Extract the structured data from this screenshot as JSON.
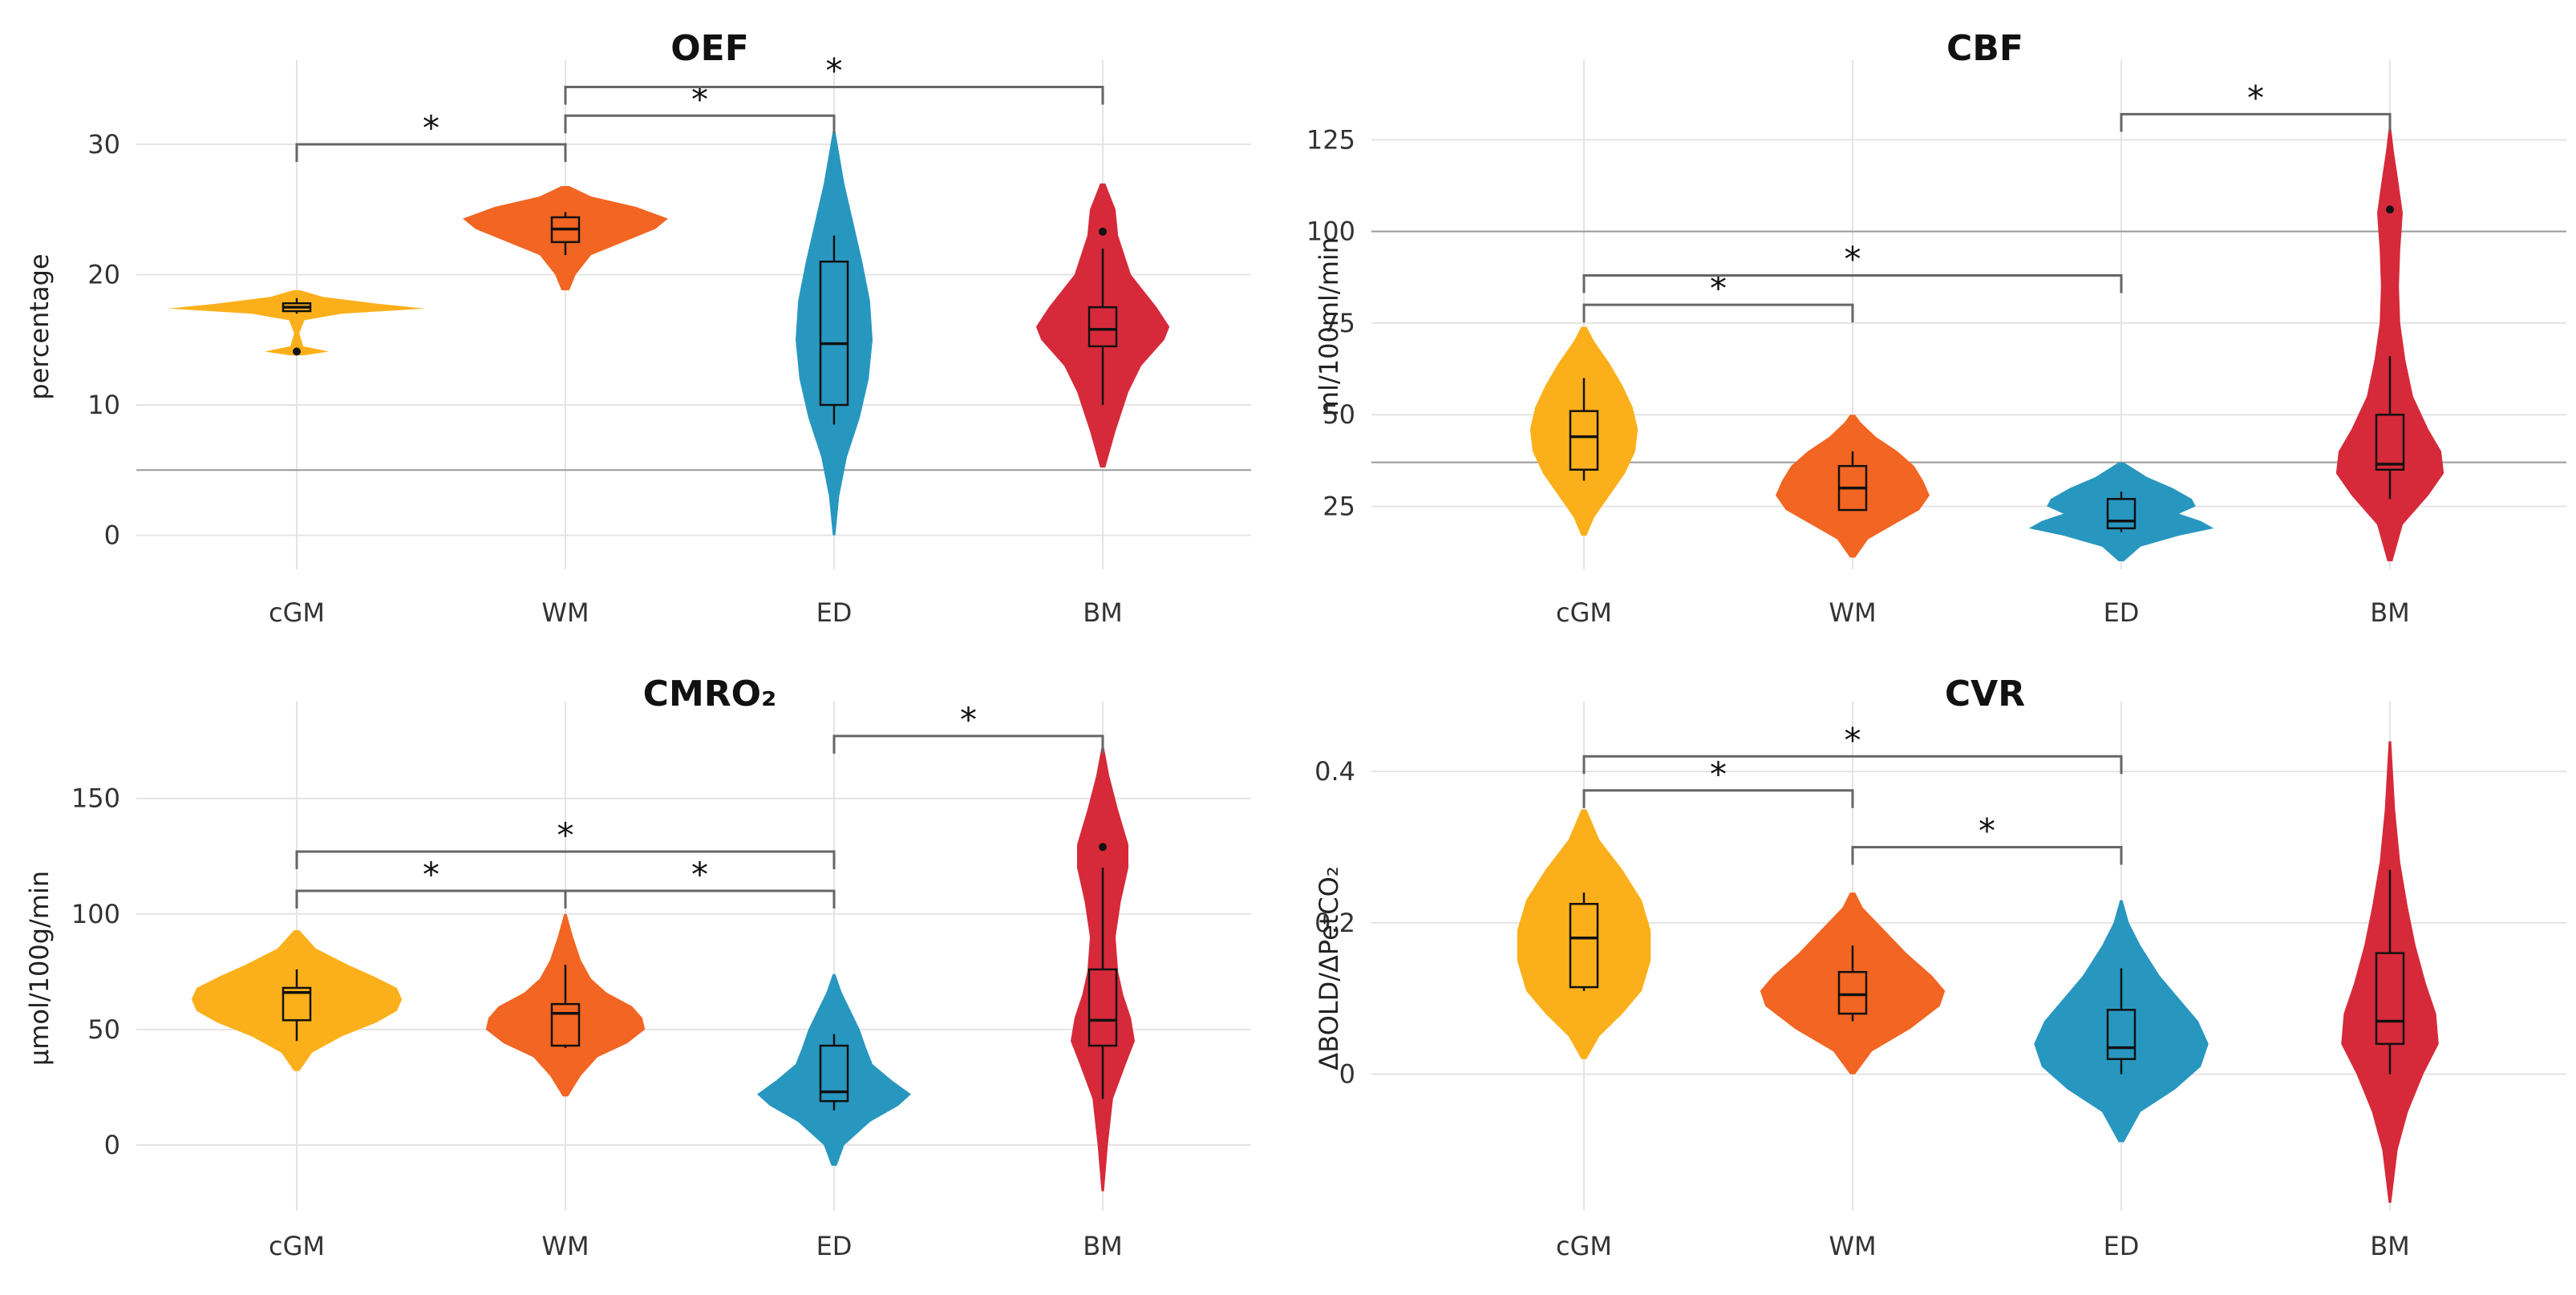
{
  "colors": {
    "cGM": "#fbb01b",
    "WM": "#f26522",
    "ED": "#2897c0",
    "BM": "#d62a3a"
  },
  "chart_data": [
    {
      "type": "violin",
      "title": "OEF",
      "ylabel": "percentage",
      "categories": [
        "cGM",
        "WM",
        "ED",
        "BM"
      ],
      "yticks": [
        0,
        10,
        20,
        30
      ],
      "ylim": [
        -2,
        34
      ],
      "reflines": [
        5
      ],
      "violins": [
        {
          "min": 13.8,
          "max": 18.8,
          "profile": [
            [
              13.8,
              0.05
            ],
            [
              14.1,
              0.25
            ],
            [
              14.5,
              0.05
            ],
            [
              15.5,
              0.02
            ],
            [
              16.5,
              0.06
            ],
            [
              17.0,
              0.35
            ],
            [
              17.4,
              1.0
            ],
            [
              17.8,
              0.6
            ],
            [
              18.3,
              0.2
            ],
            [
              18.8,
              0.03
            ]
          ]
        },
        {
          "min": 18.8,
          "max": 26.8,
          "profile": [
            [
              18.8,
              0.03
            ],
            [
              20,
              0.08
            ],
            [
              21.5,
              0.2
            ],
            [
              22.5,
              0.45
            ],
            [
              23.5,
              0.7
            ],
            [
              24.3,
              0.8
            ],
            [
              25.2,
              0.55
            ],
            [
              26,
              0.2
            ],
            [
              26.8,
              0.03
            ]
          ]
        },
        {
          "min": 0,
          "max": 31,
          "profile": [
            [
              0,
              0.01
            ],
            [
              3,
              0.04
            ],
            [
              6,
              0.1
            ],
            [
              9,
              0.2
            ],
            [
              12,
              0.27
            ],
            [
              15,
              0.3
            ],
            [
              18,
              0.28
            ],
            [
              21,
              0.22
            ],
            [
              24,
              0.15
            ],
            [
              27,
              0.08
            ],
            [
              31,
              0.01
            ]
          ]
        },
        {
          "min": 5.2,
          "max": 27,
          "profile": [
            [
              5.2,
              0.02
            ],
            [
              8,
              0.1
            ],
            [
              11,
              0.2
            ],
            [
              13,
              0.3
            ],
            [
              15,
              0.48
            ],
            [
              16,
              0.52
            ],
            [
              17.5,
              0.42
            ],
            [
              20,
              0.22
            ],
            [
              23,
              0.12
            ],
            [
              25,
              0.1
            ],
            [
              27,
              0.02
            ]
          ]
        }
      ],
      "boxes": [
        {
          "lo": 17.0,
          "q1": 17.2,
          "med": 17.5,
          "q3": 17.8,
          "hi": 18.2,
          "outliers": [
            14.1
          ]
        },
        {
          "lo": 21.5,
          "q1": 22.5,
          "med": 23.5,
          "q3": 24.4,
          "hi": 24.8,
          "outliers": []
        },
        {
          "lo": 8.5,
          "q1": 10,
          "med": 14.7,
          "q3": 21,
          "hi": 23,
          "outliers": []
        },
        {
          "lo": 10,
          "q1": 14.5,
          "med": 15.8,
          "q3": 17.5,
          "hi": 22,
          "outliers": [
            23.3
          ]
        }
      ],
      "brackets": [
        {
          "from": 0,
          "to": 1,
          "y": 30,
          "label": "*"
        },
        {
          "from": 1,
          "to": 2,
          "y": 32.2,
          "label": "*"
        },
        {
          "from": 1,
          "to": 3,
          "y": 34.4,
          "label": "*"
        }
      ]
    },
    {
      "type": "violin",
      "title": "CBF",
      "ylabel": "ml/100ml/min",
      "categories": [
        "cGM",
        "WM",
        "ED",
        "BM"
      ],
      "yticks": [
        25,
        50,
        75,
        100,
        125
      ],
      "ylim": [
        10,
        138
      ],
      "reflines": [
        37,
        100
      ],
      "violins": [
        {
          "min": 17,
          "max": 74,
          "profile": [
            [
              17,
              0.02
            ],
            [
              22,
              0.08
            ],
            [
              28,
              0.2
            ],
            [
              34,
              0.32
            ],
            [
              40,
              0.4
            ],
            [
              46,
              0.42
            ],
            [
              52,
              0.38
            ],
            [
              58,
              0.3
            ],
            [
              64,
              0.2
            ],
            [
              70,
              0.08
            ],
            [
              74,
              0.02
            ]
          ]
        },
        {
          "min": 11,
          "max": 50,
          "profile": [
            [
              11,
              0.02
            ],
            [
              16,
              0.12
            ],
            [
              20,
              0.32
            ],
            [
              24,
              0.52
            ],
            [
              28,
              0.6
            ],
            [
              32,
              0.55
            ],
            [
              36,
              0.48
            ],
            [
              40,
              0.35
            ],
            [
              44,
              0.18
            ],
            [
              48,
              0.06
            ],
            [
              50,
              0.02
            ]
          ]
        },
        {
          "min": 10,
          "max": 37,
          "profile": [
            [
              10,
              0.02
            ],
            [
              14,
              0.15
            ],
            [
              17,
              0.45
            ],
            [
              19,
              0.72
            ],
            [
              21,
              0.62
            ],
            [
              23,
              0.45
            ],
            [
              25,
              0.58
            ],
            [
              27,
              0.55
            ],
            [
              30,
              0.4
            ],
            [
              33,
              0.2
            ],
            [
              37,
              0.02
            ]
          ]
        },
        {
          "min": 10,
          "max": 128,
          "profile": [
            [
              10,
              0.02
            ],
            [
              20,
              0.1
            ],
            [
              28,
              0.3
            ],
            [
              34,
              0.42
            ],
            [
              40,
              0.4
            ],
            [
              46,
              0.3
            ],
            [
              55,
              0.18
            ],
            [
              65,
              0.12
            ],
            [
              75,
              0.08
            ],
            [
              85,
              0.07
            ],
            [
              95,
              0.08
            ],
            [
              105,
              0.1
            ],
            [
              115,
              0.06
            ],
            [
              122,
              0.03
            ],
            [
              128,
              0.01
            ]
          ]
        }
      ],
      "boxes": [
        {
          "lo": 32,
          "q1": 35,
          "med": 44,
          "q3": 51,
          "hi": 60,
          "outliers": []
        },
        {
          "lo": 24,
          "q1": 24,
          "med": 30,
          "q3": 36,
          "hi": 40,
          "outliers": []
        },
        {
          "lo": 18,
          "q1": 19,
          "med": 21,
          "q3": 27,
          "hi": 29,
          "outliers": []
        },
        {
          "lo": 27,
          "q1": 35,
          "med": 36.5,
          "q3": 50,
          "hi": 66,
          "outliers": [
            106
          ]
        }
      ],
      "brackets": [
        {
          "from": 0,
          "to": 1,
          "y": 80,
          "label": "*"
        },
        {
          "from": 0,
          "to": 2,
          "y": 88,
          "label": "*"
        },
        {
          "from": 2,
          "to": 3,
          "y": 132,
          "label": "*"
        }
      ]
    },
    {
      "type": "violin",
      "title": "CMRO₂",
      "ylabel": "µmol/100g/min",
      "categories": [
        "cGM",
        "WM",
        "ED",
        "BM"
      ],
      "yticks": [
        0,
        50,
        100,
        150
      ],
      "ylim": [
        -25,
        178
      ],
      "reflines": [],
      "violins": [
        {
          "min": 32,
          "max": 93,
          "profile": [
            [
              32,
              0.02
            ],
            [
              40,
              0.12
            ],
            [
              47,
              0.35
            ],
            [
              53,
              0.62
            ],
            [
              58,
              0.78
            ],
            [
              63,
              0.82
            ],
            [
              68,
              0.78
            ],
            [
              73,
              0.6
            ],
            [
              78,
              0.4
            ],
            [
              85,
              0.15
            ],
            [
              93,
              0.02
            ]
          ]
        },
        {
          "min": 21,
          "max": 100,
          "profile": [
            [
              21,
              0.02
            ],
            [
              30,
              0.12
            ],
            [
              38,
              0.25
            ],
            [
              44,
              0.48
            ],
            [
              50,
              0.62
            ],
            [
              55,
              0.6
            ],
            [
              60,
              0.52
            ],
            [
              66,
              0.32
            ],
            [
              72,
              0.2
            ],
            [
              80,
              0.12
            ],
            [
              90,
              0.06
            ],
            [
              100,
              0.01
            ]
          ]
        },
        {
          "min": -9,
          "max": 74,
          "profile": [
            [
              -9,
              0.02
            ],
            [
              0,
              0.08
            ],
            [
              10,
              0.28
            ],
            [
              17,
              0.5
            ],
            [
              22,
              0.6
            ],
            [
              28,
              0.45
            ],
            [
              35,
              0.3
            ],
            [
              42,
              0.25
            ],
            [
              50,
              0.2
            ],
            [
              58,
              0.13
            ],
            [
              66,
              0.06
            ],
            [
              74,
              0.01
            ]
          ]
        },
        {
          "min": -20,
          "max": 172,
          "profile": [
            [
              -20,
              0.01
            ],
            [
              0,
              0.04
            ],
            [
              20,
              0.08
            ],
            [
              35,
              0.18
            ],
            [
              45,
              0.25
            ],
            [
              55,
              0.22
            ],
            [
              65,
              0.16
            ],
            [
              75,
              0.12
            ],
            [
              90,
              0.1
            ],
            [
              105,
              0.14
            ],
            [
              120,
              0.2
            ],
            [
              130,
              0.2
            ],
            [
              145,
              0.12
            ],
            [
              160,
              0.05
            ],
            [
              172,
              0.01
            ]
          ]
        }
      ],
      "boxes": [
        {
          "lo": 45,
          "q1": 54,
          "med": 66,
          "q3": 68,
          "hi": 76,
          "outliers": []
        },
        {
          "lo": 42,
          "q1": 43,
          "med": 57,
          "q3": 61,
          "hi": 78,
          "outliers": []
        },
        {
          "lo": 15,
          "q1": 19,
          "med": 23,
          "q3": 43,
          "hi": 48,
          "outliers": []
        },
        {
          "lo": 20,
          "q1": 43,
          "med": 54,
          "q3": 76,
          "hi": 120,
          "outliers": [
            129
          ]
        }
      ],
      "brackets": [
        {
          "from": 0,
          "to": 1,
          "y": 110,
          "label": "*"
        },
        {
          "from": 1,
          "to": 2,
          "y": 110,
          "label": "*"
        },
        {
          "from": 0,
          "to": 2,
          "y": 127,
          "label": "*"
        },
        {
          "from": 2,
          "to": 3,
          "y": 177,
          "label": "*"
        }
      ]
    },
    {
      "type": "violin",
      "title": "CVR",
      "ylabel": "ΔBOLD/ΔPetCO₂",
      "categories": [
        "cGM",
        "WM",
        "ED",
        "BM"
      ],
      "yticks": [
        0.0,
        0.2,
        0.4
      ],
      "ylim": [
        -0.17,
        0.45
      ],
      "reflines": [],
      "violins": [
        {
          "min": 0.02,
          "max": 0.35,
          "profile": [
            [
              0.02,
              0.02
            ],
            [
              0.05,
              0.12
            ],
            [
              0.08,
              0.3
            ],
            [
              0.11,
              0.45
            ],
            [
              0.15,
              0.52
            ],
            [
              0.19,
              0.52
            ],
            [
              0.23,
              0.45
            ],
            [
              0.27,
              0.3
            ],
            [
              0.31,
              0.12
            ],
            [
              0.35,
              0.02
            ]
          ]
        },
        {
          "min": 0.0,
          "max": 0.24,
          "profile": [
            [
              0.0,
              0.02
            ],
            [
              0.03,
              0.15
            ],
            [
              0.06,
              0.45
            ],
            [
              0.09,
              0.68
            ],
            [
              0.11,
              0.72
            ],
            [
              0.13,
              0.62
            ],
            [
              0.16,
              0.42
            ],
            [
              0.19,
              0.25
            ],
            [
              0.22,
              0.08
            ],
            [
              0.24,
              0.02
            ]
          ]
        },
        {
          "min": -0.09,
          "max": 0.23,
          "profile": [
            [
              -0.09,
              0.02
            ],
            [
              -0.05,
              0.15
            ],
            [
              -0.02,
              0.42
            ],
            [
              0.01,
              0.62
            ],
            [
              0.04,
              0.68
            ],
            [
              0.07,
              0.6
            ],
            [
              0.1,
              0.45
            ],
            [
              0.13,
              0.3
            ],
            [
              0.17,
              0.15
            ],
            [
              0.2,
              0.06
            ],
            [
              0.23,
              0.01
            ]
          ]
        },
        {
          "min": -0.17,
          "max": 0.44,
          "profile": [
            [
              -0.17,
              0.01
            ],
            [
              -0.1,
              0.06
            ],
            [
              -0.05,
              0.14
            ],
            [
              0.0,
              0.26
            ],
            [
              0.04,
              0.38
            ],
            [
              0.08,
              0.36
            ],
            [
              0.12,
              0.28
            ],
            [
              0.17,
              0.2
            ],
            [
              0.22,
              0.14
            ],
            [
              0.28,
              0.08
            ],
            [
              0.35,
              0.04
            ],
            [
              0.44,
              0.01
            ]
          ]
        }
      ],
      "boxes": [
        {
          "lo": 0.11,
          "q1": 0.115,
          "med": 0.18,
          "q3": 0.225,
          "hi": 0.24,
          "outliers": []
        },
        {
          "lo": 0.07,
          "q1": 0.08,
          "med": 0.105,
          "q3": 0.135,
          "hi": 0.17,
          "outliers": []
        },
        {
          "lo": 0.0,
          "q1": 0.02,
          "med": 0.035,
          "q3": 0.085,
          "hi": 0.14,
          "outliers": []
        },
        {
          "lo": 0.0,
          "q1": 0.04,
          "med": 0.07,
          "q3": 0.16,
          "hi": 0.27,
          "outliers": []
        }
      ],
      "brackets": [
        {
          "from": 0,
          "to": 1,
          "y": 0.375,
          "label": "*"
        },
        {
          "from": 0,
          "to": 2,
          "y": 0.42,
          "label": "*"
        },
        {
          "from": 1,
          "to": 2,
          "y": 0.3,
          "label": "*"
        }
      ]
    }
  ]
}
